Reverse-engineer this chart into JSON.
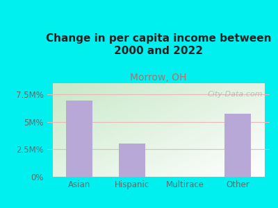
{
  "title": "Change in per capita income between\n2000 and 2022",
  "subtitle": "Morrow, OH",
  "categories": [
    "Asian",
    "Hispanic",
    "Multirace",
    "Other"
  ],
  "values": [
    6.9,
    3.0,
    0.0,
    5.7
  ],
  "bar_color": "#b8a8d8",
  "yticks": [
    0,
    2.5,
    5.0,
    7.5
  ],
  "ytick_labels": [
    "0%",
    "2.5M%",
    "5M%",
    "7.5M%"
  ],
  "ylim": [
    0,
    8.5
  ],
  "background_color": "#00f0f0",
  "plot_bg_topleft": "#c8e8c8",
  "plot_bg_bottomright": "#ffffff",
  "title_fontsize": 11,
  "subtitle_fontsize": 10,
  "subtitle_color": "#b07070",
  "title_color": "#222222",
  "watermark": "City-Data.com",
  "grid_color": "#e8b8b8",
  "axis_color": "#aaaaaa",
  "tick_color": "#666666"
}
